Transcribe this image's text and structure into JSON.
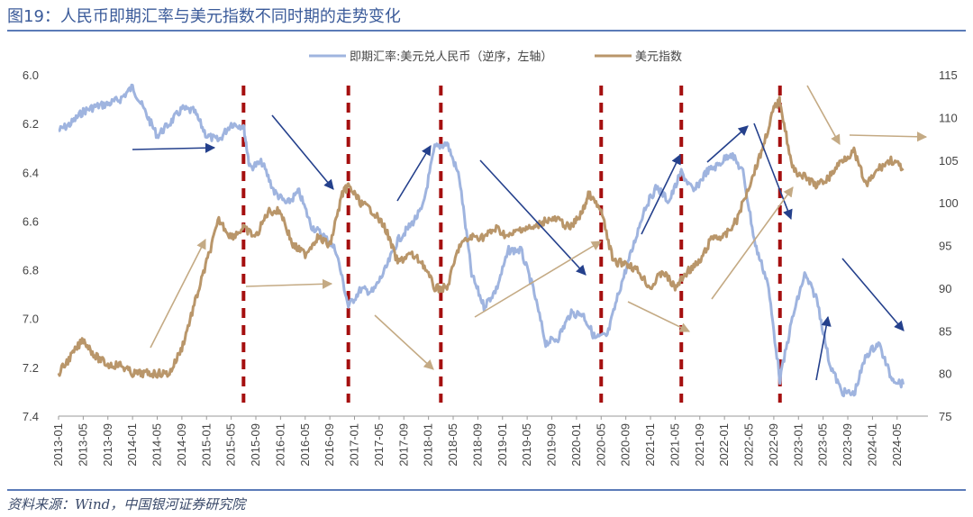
{
  "figure": {
    "title": "图19：人民币即期汇率与美元指数不同时期的走势变化",
    "source": "资料来源：Wind，中国银河证券研究院"
  },
  "colors": {
    "rmb": "#9fb4df",
    "usd": "#b9966a",
    "vline": "#a50f0f",
    "arrow_blue": "#24408c",
    "arrow_tan": "#c4aa84",
    "rule": "#5b7bb8"
  },
  "chart_data": {
    "type": "line",
    "legend_position": "top-center",
    "grid": false,
    "x_ticks": [
      "2013-01",
      "2013-05",
      "2013-09",
      "2014-01",
      "2014-05",
      "2014-09",
      "2015-01",
      "2015-05",
      "2015-09",
      "2016-01",
      "2016-05",
      "2016-09",
      "2017-01",
      "2017-05",
      "2017-09",
      "2018-01",
      "2018-05",
      "2018-09",
      "2019-01",
      "2019-05",
      "2019-09",
      "2020-01",
      "2020-05",
      "2020-09",
      "2021-01",
      "2021-05",
      "2021-09",
      "2022-01",
      "2022-05",
      "2022-09",
      "2023-01",
      "2023-05",
      "2023-09",
      "2024-01",
      "2024-05"
    ],
    "y_left": {
      "label": "",
      "ylim": [
        6.0,
        7.4
      ],
      "inverted": true,
      "ticks": [
        "6.0",
        "6.2",
        "6.4",
        "6.6",
        "6.8",
        "7.0",
        "7.2",
        "7.4"
      ]
    },
    "y_right": {
      "label": "",
      "ylim": [
        75,
        115
      ],
      "ticks": [
        "75",
        "80",
        "85",
        "90",
        "95",
        "100",
        "105",
        "110",
        "115"
      ]
    },
    "series": [
      {
        "name": "即期汇率:美元兑人民币（逆序，左轴）",
        "axis": "left",
        "x": [
          "2013-01",
          "2013-03",
          "2013-05",
          "2013-07",
          "2013-09",
          "2013-11",
          "2014-01",
          "2014-03",
          "2014-05",
          "2014-07",
          "2014-09",
          "2014-11",
          "2015-01",
          "2015-03",
          "2015-05",
          "2015-07",
          "2015-08",
          "2015-10",
          "2015-12",
          "2016-02",
          "2016-04",
          "2016-06",
          "2016-08",
          "2016-10",
          "2016-12",
          "2017-02",
          "2017-04",
          "2017-06",
          "2017-08",
          "2017-10",
          "2017-12",
          "2018-02",
          "2018-04",
          "2018-06",
          "2018-08",
          "2018-10",
          "2018-12",
          "2019-02",
          "2019-04",
          "2019-06",
          "2019-08",
          "2019-10",
          "2019-12",
          "2020-02",
          "2020-04",
          "2020-06",
          "2020-08",
          "2020-10",
          "2020-12",
          "2021-02",
          "2021-04",
          "2021-06",
          "2021-08",
          "2021-10",
          "2021-12",
          "2022-02",
          "2022-04",
          "2022-06",
          "2022-08",
          "2022-10",
          "2022-12",
          "2023-02",
          "2023-04",
          "2023-06",
          "2023-08",
          "2023-10",
          "2023-12",
          "2024-02",
          "2024-04",
          "2024-06"
        ],
        "values": [
          6.23,
          6.2,
          6.15,
          6.13,
          6.12,
          6.1,
          6.05,
          6.15,
          6.25,
          6.2,
          6.14,
          6.15,
          6.25,
          6.27,
          6.2,
          6.21,
          6.38,
          6.36,
          6.48,
          6.53,
          6.48,
          6.62,
          6.66,
          6.72,
          6.95,
          6.88,
          6.89,
          6.8,
          6.68,
          6.62,
          6.55,
          6.3,
          6.28,
          6.42,
          6.82,
          6.95,
          6.88,
          6.72,
          6.72,
          6.88,
          7.1,
          7.08,
          6.98,
          6.98,
          7.08,
          7.07,
          6.88,
          6.72,
          6.55,
          6.46,
          6.52,
          6.4,
          6.48,
          6.4,
          6.37,
          6.32,
          6.4,
          6.7,
          6.85,
          7.25,
          7.0,
          6.82,
          6.92,
          7.18,
          7.3,
          7.31,
          7.15,
          7.1,
          7.24,
          7.27
        ]
      },
      {
        "name": "美元指数",
        "axis": "right",
        "x": [
          "2013-01",
          "2013-03",
          "2013-05",
          "2013-07",
          "2013-09",
          "2013-11",
          "2014-01",
          "2014-03",
          "2014-05",
          "2014-07",
          "2014-09",
          "2014-11",
          "2015-01",
          "2015-03",
          "2015-05",
          "2015-07",
          "2015-09",
          "2015-11",
          "2016-01",
          "2016-03",
          "2016-05",
          "2016-07",
          "2016-09",
          "2016-11",
          "2016-12",
          "2017-02",
          "2017-04",
          "2017-06",
          "2017-08",
          "2017-10",
          "2017-12",
          "2018-02",
          "2018-04",
          "2018-06",
          "2018-08",
          "2018-10",
          "2018-12",
          "2019-02",
          "2019-04",
          "2019-06",
          "2019-08",
          "2019-10",
          "2019-12",
          "2020-02",
          "2020-03",
          "2020-05",
          "2020-07",
          "2020-09",
          "2020-11",
          "2021-01",
          "2021-03",
          "2021-05",
          "2021-07",
          "2021-09",
          "2021-11",
          "2022-01",
          "2022-03",
          "2022-05",
          "2022-07",
          "2022-09",
          "2022-10",
          "2022-12",
          "2023-02",
          "2023-04",
          "2023-06",
          "2023-08",
          "2023-10",
          "2023-12",
          "2024-02",
          "2024-04",
          "2024-06"
        ],
        "values": [
          80,
          82,
          84,
          82,
          81,
          81,
          80,
          80,
          80,
          80,
          83,
          88,
          93,
          98,
          96,
          97,
          96,
          99,
          99,
          95,
          94,
          96,
          95,
          101,
          102,
          100,
          99,
          97,
          93,
          94,
          93,
          90,
          90,
          95,
          96,
          96,
          97,
          96,
          97,
          97,
          98,
          98,
          97,
          99,
          101,
          99,
          93,
          93,
          92,
          90,
          92,
          90,
          92,
          93,
          96,
          96,
          98,
          102,
          106,
          111,
          112,
          104,
          103,
          102,
          103,
          105,
          106,
          102,
          104,
          105,
          104
        ]
      }
    ],
    "vertical_markers": [
      "2015-07",
      "2016-12",
      "2018-03",
      "2020-05",
      "2021-06",
      "2022-10"
    ]
  }
}
